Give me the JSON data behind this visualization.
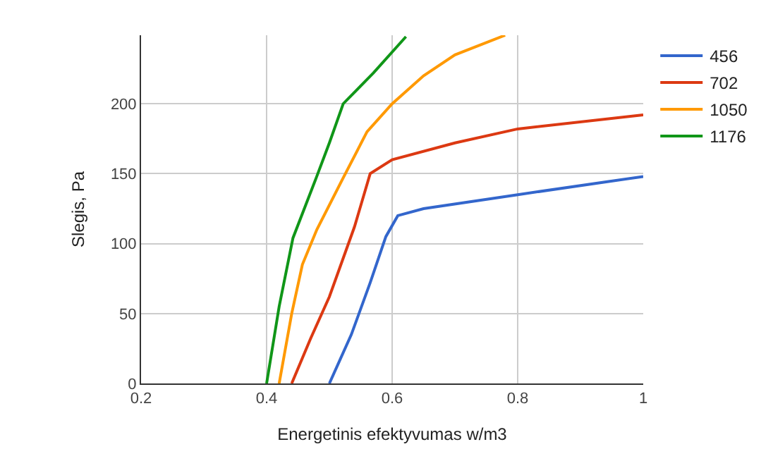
{
  "chart_data": {
    "type": "line",
    "xlabel": "Energetinis efektyvumas w/m3",
    "ylabel": "Slegis, Pa",
    "xlim": [
      0.2,
      1
    ],
    "xticks": [
      0.2,
      0.4,
      0.6,
      0.8,
      1
    ],
    "ylim": [
      0,
      249
    ],
    "yticks": [
      0,
      50,
      100,
      150,
      200
    ],
    "grid": true,
    "legend": "right",
    "marker": "none",
    "line_style": "solid",
    "series": [
      {
        "name": "456",
        "color": "#3366cc",
        "x": [
          0.5,
          0.535,
          0.565,
          0.59,
          0.609,
          0.65,
          0.8,
          1
        ],
        "values": [
          0,
          35,
          72,
          105,
          120,
          125,
          135,
          148
        ]
      },
      {
        "name": "702",
        "color": "#dc3912",
        "x": [
          0.44,
          0.47,
          0.5,
          0.54,
          0.565,
          0.6,
          0.7,
          0.8,
          1
        ],
        "values": [
          0,
          32,
          62,
          112,
          150,
          160,
          172,
          182,
          192
        ]
      },
      {
        "name": "1050",
        "color": "#ff9900",
        "x": [
          0.42,
          0.44,
          0.457,
          0.48,
          0.522,
          0.56,
          0.6,
          0.65,
          0.7,
          0.78
        ],
        "values": [
          0,
          50,
          85,
          110,
          147,
          180,
          200,
          220,
          235,
          249
        ]
      },
      {
        "name": "1176",
        "color": "#109618",
        "x": [
          0.4,
          0.42,
          0.442,
          0.479,
          0.5,
          0.522,
          0.57,
          0.622
        ],
        "values": [
          0,
          55,
          104,
          147,
          172,
          200,
          222,
          248
        ]
      }
    ]
  }
}
